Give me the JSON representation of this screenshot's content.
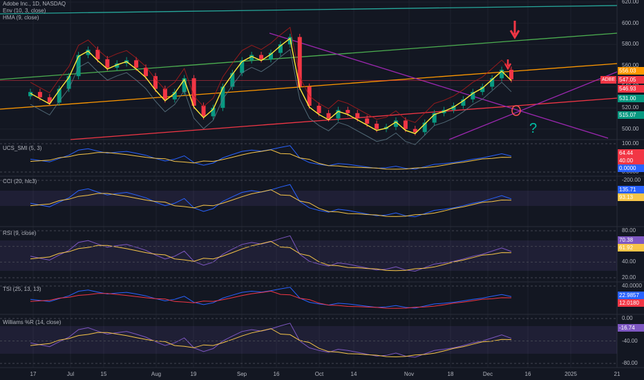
{
  "main_legend": [
    "Adobe Inc., 1D, NASDAQ",
    "Env (10, 3, close)",
    "HMA (9, close)"
  ],
  "panes": {
    "smi": {
      "title": "UCS_SMI (5, 3)",
      "ticks": [
        "100.00",
        "0.0000"
      ],
      "tags": [
        {
          "text": "64.44",
          "color": "#f23645"
        },
        {
          "text": "40.00",
          "color": "#f23645"
        },
        {
          "text": "0.0000",
          "color": "#2962ff"
        }
      ]
    },
    "cci": {
      "title": "CCI (20, hlc3)",
      "ticks": [
        "-200.00"
      ],
      "tags": [
        {
          "text": "135.71",
          "color": "#2962ff"
        },
        {
          "text": "93.13",
          "color": "#f7c548"
        }
      ]
    },
    "rsi": {
      "title": "RSI (9, close)",
      "ticks": [
        "80.00",
        "60.00",
        "40.00",
        "20.00"
      ],
      "tags": [
        {
          "text": "70.38",
          "color": "#7e57c2"
        },
        {
          "text": "61.92",
          "color": "#f7c548"
        }
      ]
    },
    "tsi": {
      "title": "TSI (25, 13, 13)",
      "ticks": [
        "40.0000"
      ],
      "tags": [
        {
          "text": "22.9857",
          "color": "#2962ff"
        },
        {
          "text": "12.0180",
          "color": "#f23645"
        }
      ]
    },
    "wr": {
      "title": "Williams %R (14, close)",
      "ticks": [
        "0.00",
        "-40.00",
        "-80.00"
      ],
      "tags": [
        {
          "text": "-16.74",
          "color": "#7e57c2"
        }
      ]
    }
  },
  "chart_data": {
    "type": "line",
    "symbol": "ADBE",
    "price_axis": [
      "620.00",
      "600.00",
      "580.00",
      "560.00",
      "540.00",
      "520.00",
      "500.00"
    ],
    "ylim": [
      490,
      622
    ],
    "price_tags": [
      {
        "text": "556.03",
        "color": "#ff9800"
      },
      {
        "text": "547.05",
        "color": "#f23645"
      },
      {
        "text": "546.93",
        "color": "#f23645"
      },
      {
        "text": "531.00",
        "color": "#089981"
      },
      {
        "text": "515.07",
        "color": "#089981"
      }
    ],
    "time_axis": [
      "17",
      "Jul",
      "15",
      "Aug",
      "19",
      "Sep",
      "16",
      "Oct",
      "14",
      "Nov",
      "18",
      "Dec",
      "16",
      "2025",
      "21"
    ],
    "series": [
      {
        "values": [
          535,
          530,
          525,
          538,
          550,
          570,
          575,
          566,
          558,
          562,
          565,
          558,
          550,
          538,
          528,
          535,
          548,
          522,
          512,
          520,
          540,
          553,
          565,
          570,
          566,
          572,
          580,
          587,
          540,
          522,
          515,
          510,
          518,
          515,
          510,
          505,
          500,
          502,
          508,
          500,
          497,
          506,
          515,
          518,
          522,
          528,
          535,
          540,
          548,
          556,
          547
        ]
      }
    ],
    "annotations": [
      "?"
    ]
  }
}
